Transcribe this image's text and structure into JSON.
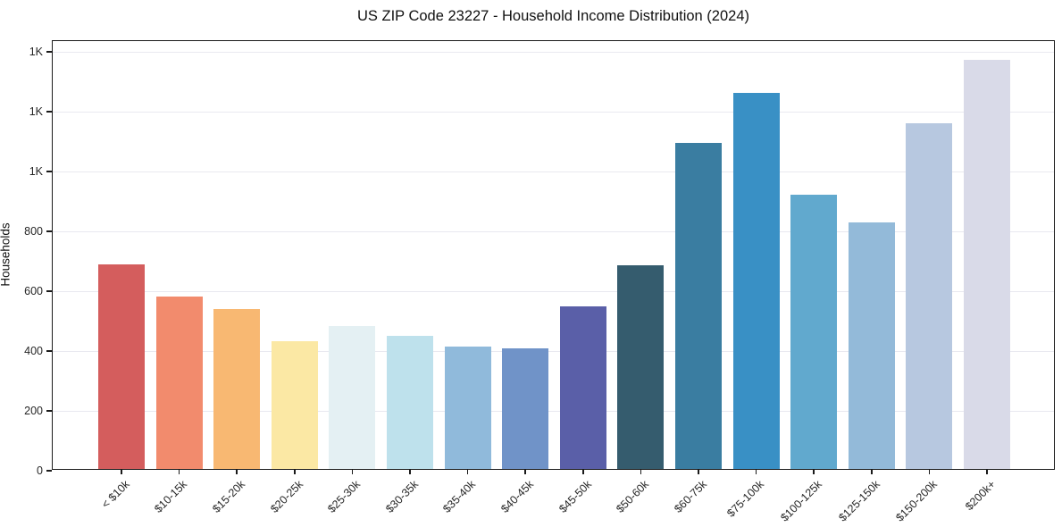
{
  "chart_data": {
    "type": "bar",
    "title": "US ZIP Code 23227 - Household Income Distribution (2024)",
    "xlabel": "",
    "ylabel": "Households",
    "categories": [
      "< $10k",
      "$10-15k",
      "$15-20k",
      "$20-25k",
      "$25-30k",
      "$30-35k",
      "$35-40k",
      "$40-45k",
      "$45-50k",
      "$50-60k",
      "$60-75k",
      "$75-100k",
      "$100-125k",
      "$125-150k",
      "$150-200k",
      "$200k+"
    ],
    "values": [
      684,
      577,
      535,
      428,
      478,
      446,
      409,
      404,
      543,
      681,
      1090,
      1256,
      918,
      824,
      1154,
      1368
    ],
    "bar_colors": [
      "#d45d5d",
      "#f28b6d",
      "#f8b872",
      "#fbe8a4",
      "#e4f0f3",
      "#bee1ec",
      "#90badb",
      "#7093c8",
      "#5a5fa8",
      "#355c6e",
      "#3a7da1",
      "#3990c5",
      "#61a9ce",
      "#93bad9",
      "#b7c8e0",
      "#d9dae8"
    ],
    "ylim": [
      0,
      1436
    ],
    "yticks": [
      {
        "value": 0,
        "label": "0"
      },
      {
        "value": 200,
        "label": "200"
      },
      {
        "value": 400,
        "label": "400"
      },
      {
        "value": 600,
        "label": "600"
      },
      {
        "value": 800,
        "label": "800"
      },
      {
        "value": 1000,
        "label": "1K"
      },
      {
        "value": 1200,
        "label": "1K"
      },
      {
        "value": 1400,
        "label": "1K"
      }
    ],
    "grid": "horizontal-on",
    "legend": "none",
    "colors": {
      "background": "#ffffff",
      "spine": "#1a1a1a",
      "gridline": "#e9e9f0",
      "tick_text": "#262626",
      "title_text": "#111111"
    }
  }
}
